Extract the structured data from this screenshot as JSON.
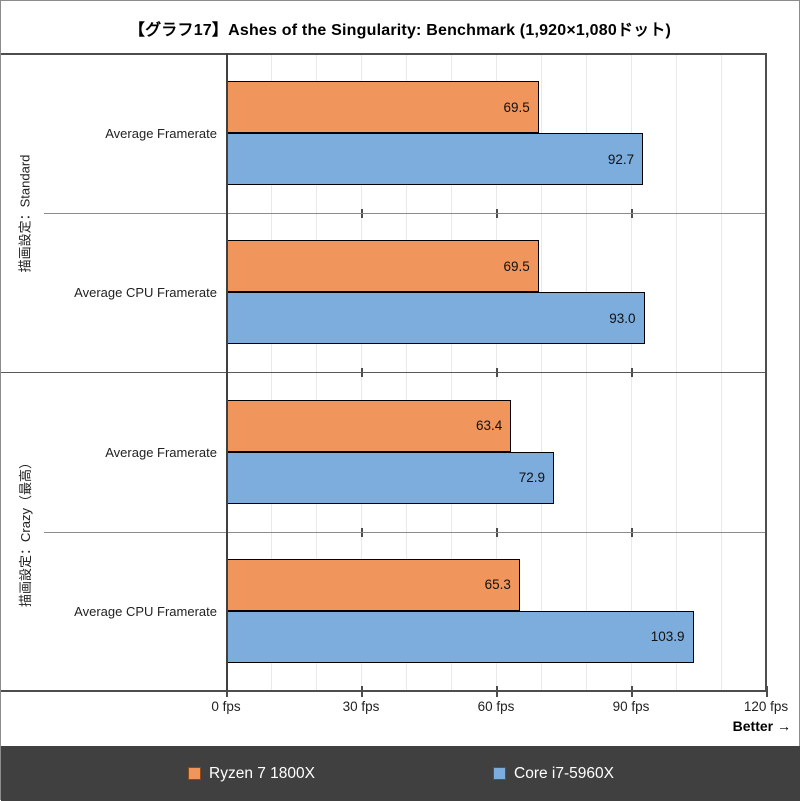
{
  "title": "【グラフ17】Ashes of the Singularity: Benchmark (1,920×1,080ドット)",
  "better_label": "Better →",
  "axis": {
    "tick_labels": [
      "0 fps",
      "30 fps",
      "60 fps",
      "90 fps",
      "120 fps"
    ],
    "unit": "fps"
  },
  "legend": {
    "background": "#404040",
    "items": [
      {
        "label": "Ryzen 7 1800X",
        "color": "#F0955C",
        "border": "#8A4A17"
      },
      {
        "label": "Core i7-5960X",
        "color": "#7DADDC",
        "border": "#2E5A87"
      }
    ]
  },
  "chart_data": {
    "type": "bar",
    "orientation": "horizontal",
    "title": "【グラフ17】Ashes of the Singularity: Benchmark (1,920×1,080ドット)",
    "groups": [
      {
        "label": "描画設定：Standard",
        "categories": [
          "Average Framerate",
          "Average CPU Framerate"
        ]
      },
      {
        "label": "描画設定：Crazy（最高）",
        "categories": [
          "Average Framerate",
          "Average CPU Framerate"
        ]
      }
    ],
    "series": [
      {
        "name": "Ryzen 7 1800X",
        "color": "#F0955C",
        "values": [
          69.5,
          69.5,
          63.4,
          65.3
        ]
      },
      {
        "name": "Core i7-5960X",
        "color": "#7DADDC",
        "values": [
          92.7,
          93.0,
          72.9,
          103.9
        ]
      }
    ],
    "xlabel_unit": "fps",
    "xlim": [
      0,
      120
    ],
    "xticks": [
      0,
      30,
      60,
      90,
      120
    ],
    "grid_minor_step_fps": 10,
    "bar_border_color": "#000000",
    "annotation": "Better →",
    "legend_position": "bottom"
  }
}
